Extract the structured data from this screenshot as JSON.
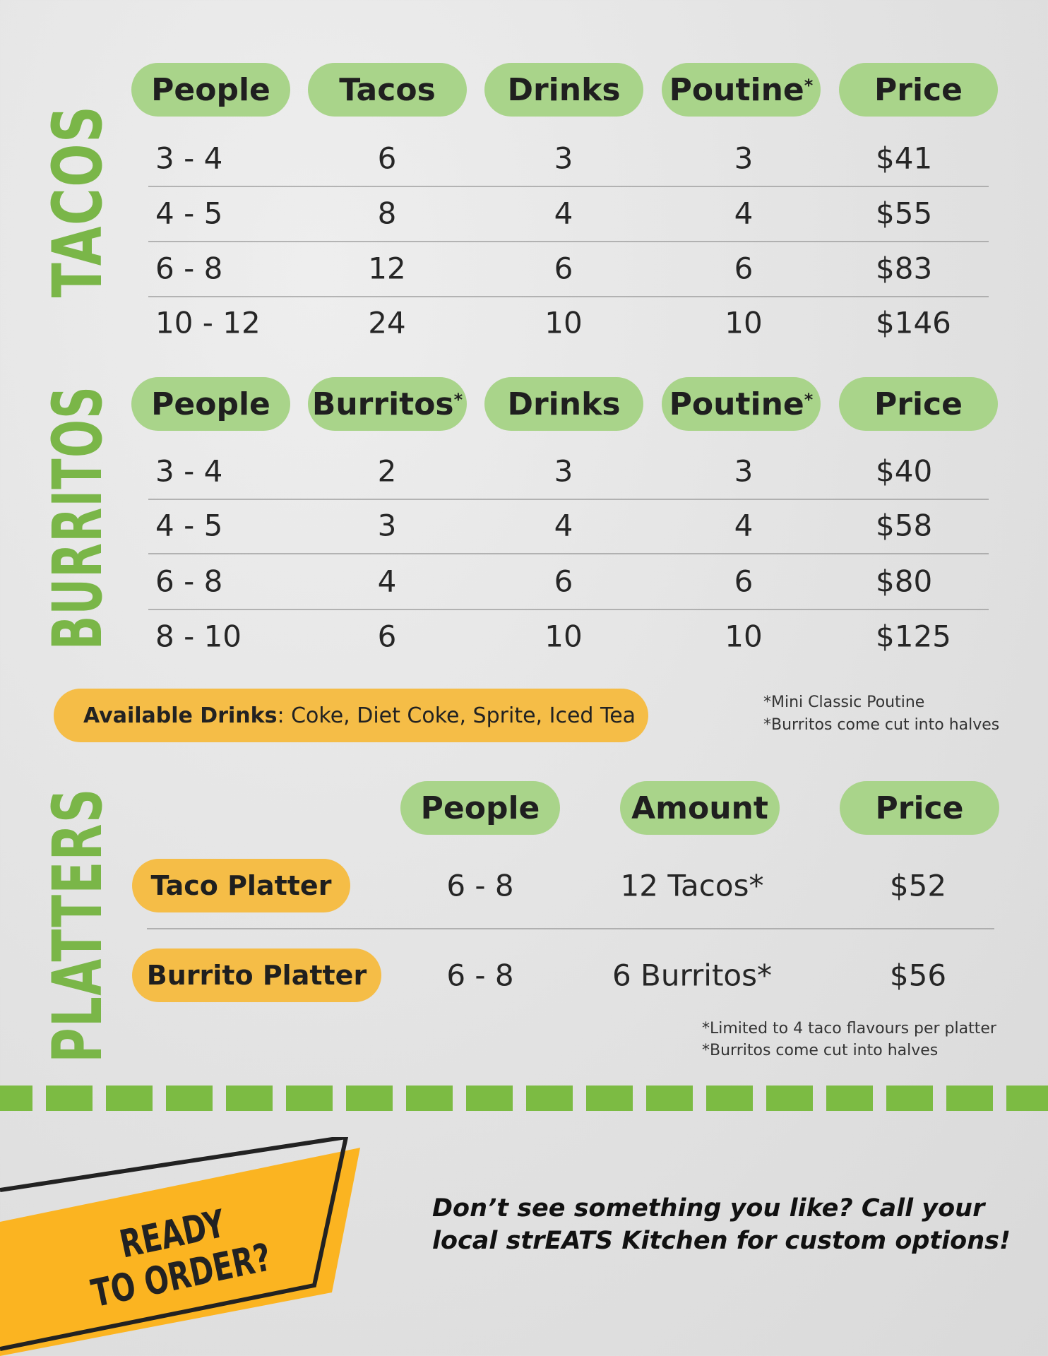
{
  "colors": {
    "green": "#7ab648",
    "pill_green": "#a9d48a",
    "yellow": "#f5bd47",
    "badge": "#fbb421"
  },
  "tacos": {
    "label": "TACOS",
    "headers": [
      "People",
      "Tacos",
      "Drinks",
      "Poutine",
      "Price"
    ],
    "header_asterisk": [
      false,
      false,
      false,
      true,
      false
    ],
    "rows": [
      [
        "3 - 4",
        "6",
        "3",
        "3",
        "$41"
      ],
      [
        "4 - 5",
        "8",
        "4",
        "4",
        "$55"
      ],
      [
        "6 - 8",
        "12",
        "6",
        "6",
        "$83"
      ],
      [
        "10 - 12",
        "24",
        "10",
        "10",
        "$146"
      ]
    ]
  },
  "burritos": {
    "label": "BURRITOS",
    "headers": [
      "People",
      "Burritos",
      "Drinks",
      "Poutine",
      "Price"
    ],
    "header_asterisk": [
      false,
      true,
      false,
      true,
      false
    ],
    "rows": [
      [
        "3 - 4",
        "2",
        "3",
        "3",
        "$40"
      ],
      [
        "4 - 5",
        "3",
        "4",
        "4",
        "$58"
      ],
      [
        "6 - 8",
        "4",
        "6",
        "6",
        "$80"
      ],
      [
        "8 - 10",
        "6",
        "10",
        "10",
        "$125"
      ]
    ]
  },
  "drinks": {
    "label": "Available Drinks",
    "value": ": Coke, Diet Coke, Sprite, Iced Tea"
  },
  "notes_1": [
    "Mini Classic Poutine",
    "Burritos come cut into halves"
  ],
  "platters": {
    "label": "PLATTERS",
    "headers": [
      "People",
      "Amount",
      "Price"
    ],
    "rows": [
      {
        "name": "Taco Platter",
        "people": "6 - 8",
        "amount": "12 Tacos*",
        "price": "$52"
      },
      {
        "name": "Burrito Platter",
        "people": "6 - 8",
        "amount": "6 Burritos*",
        "price": "$56"
      }
    ],
    "notes": [
      "Limited to 4 taco flavours per platter",
      "Burritos come cut into halves"
    ]
  },
  "footer": {
    "badge_line1": "READY",
    "badge_line2": "TO ORDER?",
    "message_line1": "Don’t see something you like? Call your",
    "message_line2": "local strEATS Kitchen for custom options!"
  }
}
